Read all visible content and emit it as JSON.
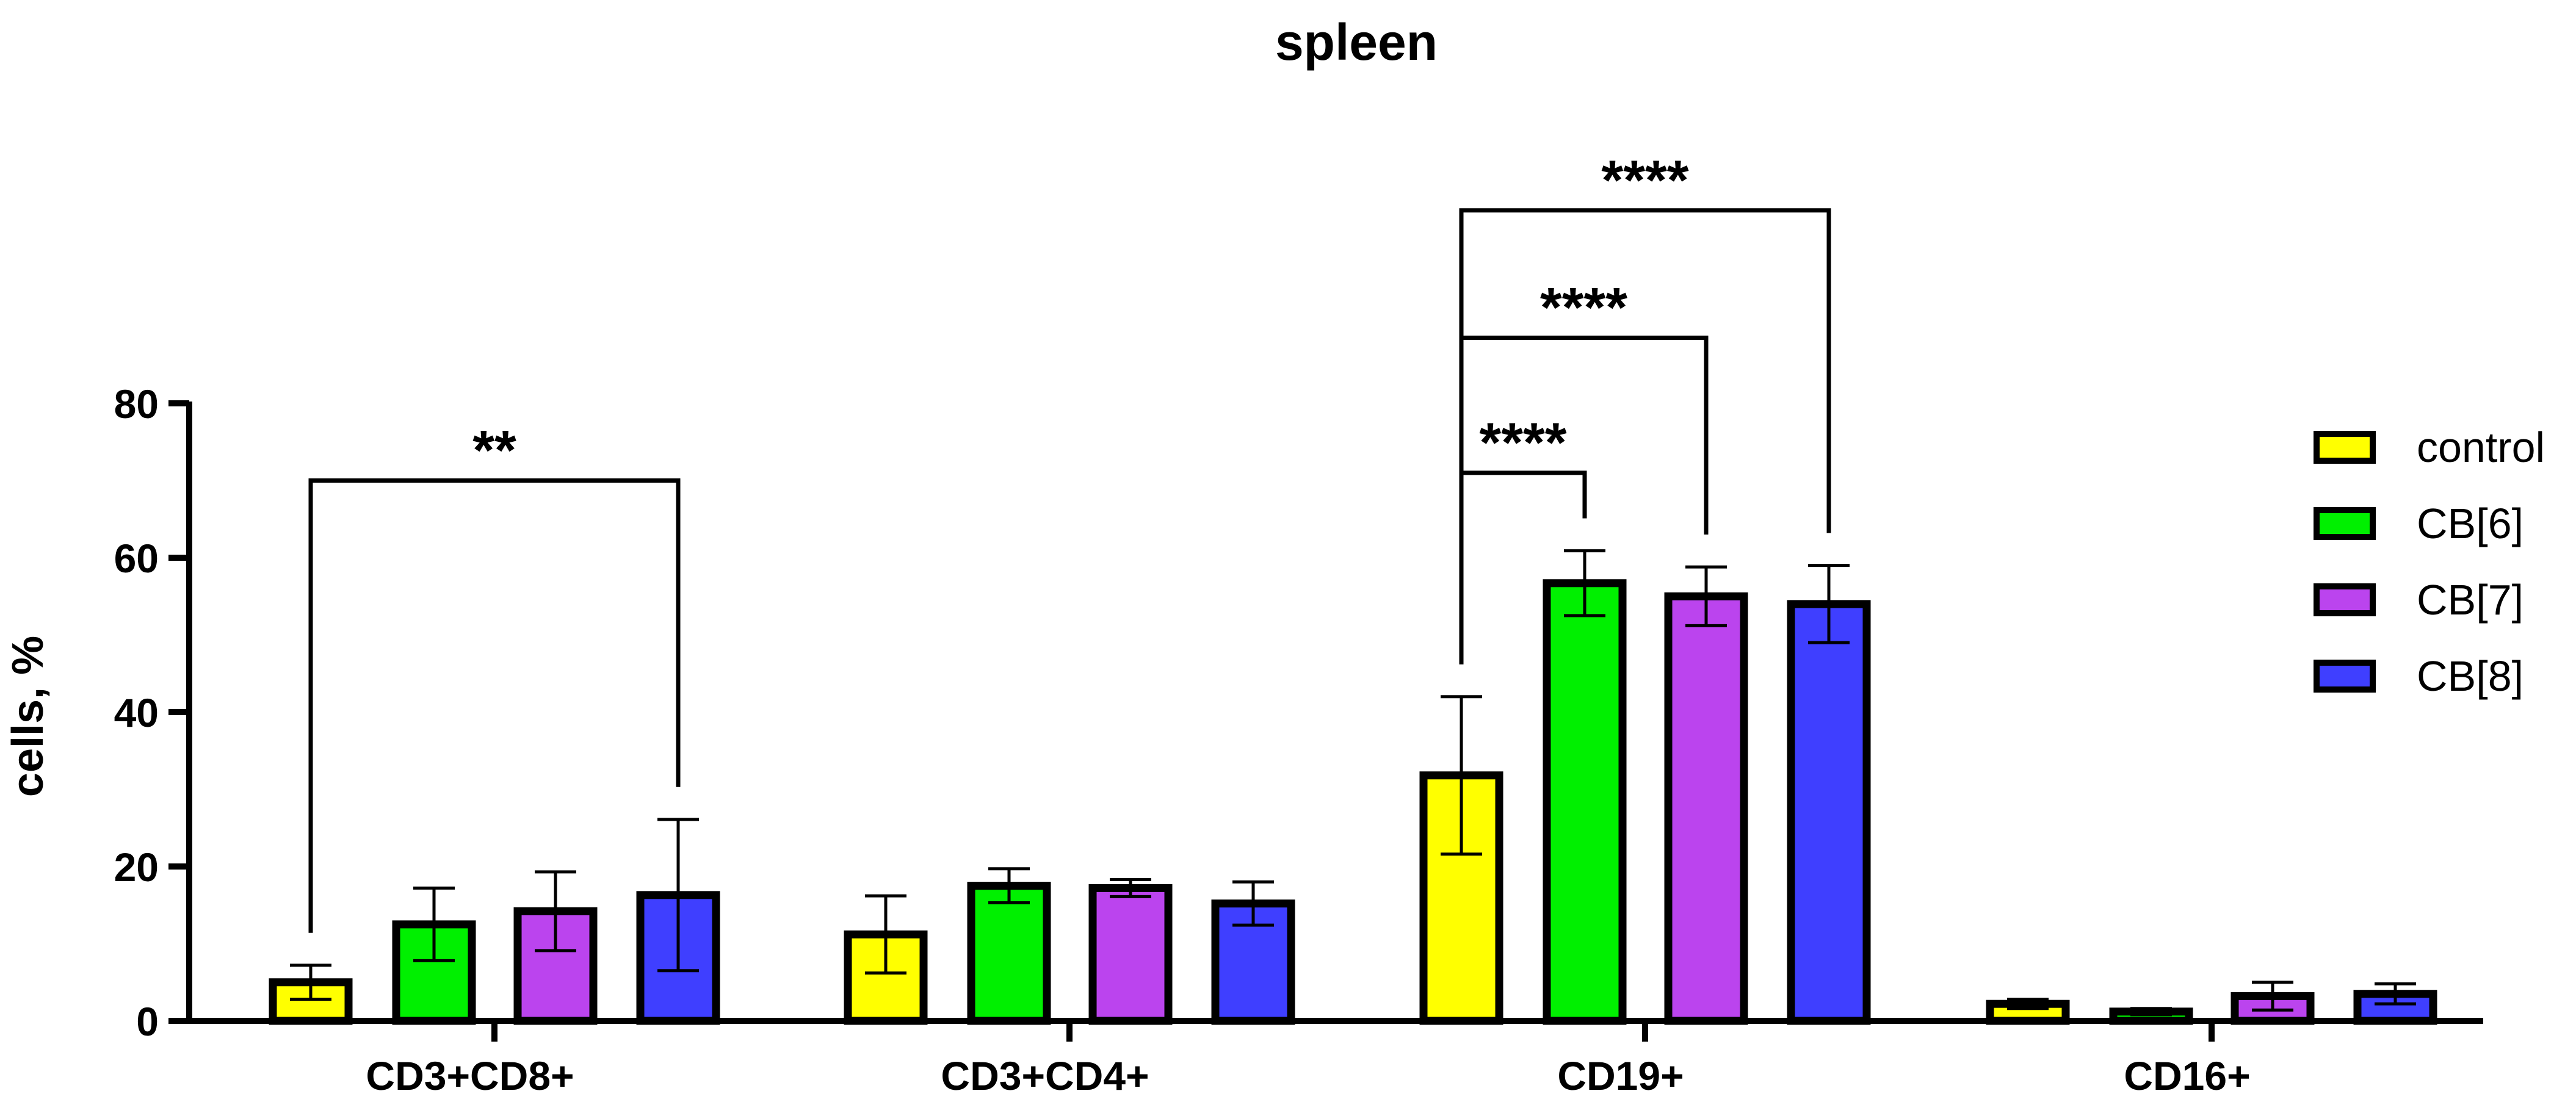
{
  "chart_data": {
    "type": "bar",
    "title": "spleen",
    "xlabel": "",
    "ylabel": "cells, %",
    "ylim": [
      0,
      80
    ],
    "yticks": [
      0,
      20,
      40,
      60,
      80
    ],
    "categories": [
      "CD3+CD8+",
      "CD3+CD4+",
      "CD19+",
      "CD16+"
    ],
    "series": [
      {
        "name": "control",
        "color": "#FFFF00",
        "values": [
          5.0,
          11.2,
          31.8,
          2.2
        ],
        "errors": [
          2.2,
          5.0,
          10.2,
          0.6
        ]
      },
      {
        "name": "CB[6]",
        "color": "#00F000",
        "values": [
          12.5,
          17.5,
          56.7,
          1.2
        ],
        "errors": [
          4.7,
          2.2,
          4.2,
          0.4
        ]
      },
      {
        "name": "CB[7]",
        "color": "#BB44EE",
        "values": [
          14.2,
          17.2,
          55.0,
          3.2
        ],
        "errors": [
          5.1,
          1.1,
          3.8,
          1.8
        ]
      },
      {
        "name": "CB[8]",
        "color": "#3F3FFF",
        "values": [
          16.3,
          15.2,
          54.0,
          3.5
        ],
        "errors": [
          9.8,
          2.8,
          5.0,
          1.3
        ]
      }
    ],
    "significance": [
      {
        "label": "**",
        "category": 0,
        "from_series": 0,
        "to_series": 3,
        "level_value": 70
      },
      {
        "label": "****",
        "category": 2,
        "from_series": 0,
        "to_series": 1,
        "level_value": 71
      },
      {
        "label": "****",
        "category": 2,
        "from_series": 0,
        "to_series": 2,
        "level_value": 88.5
      },
      {
        "label": "****",
        "category": 2,
        "from_series": 0,
        "to_series": 3,
        "level_value": 105
      }
    ],
    "legend_position": "right"
  }
}
